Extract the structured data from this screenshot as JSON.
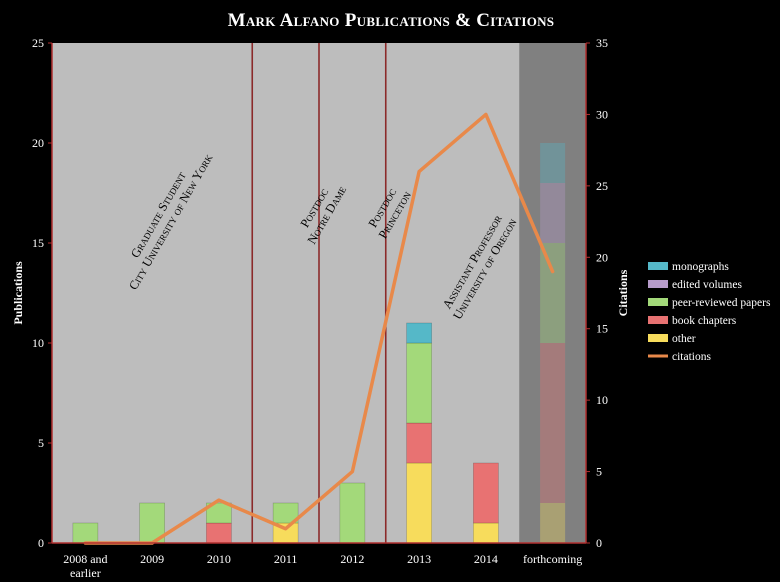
{
  "chart_data": {
    "type": "bar",
    "title": "Mark Alfano Publications & Citations",
    "ylabel": "Publications",
    "y2label": "Citations",
    "ylim": [
      0,
      25
    ],
    "y2lim": [
      0,
      35
    ],
    "yticks": [
      "0",
      "5",
      "10",
      "15",
      "20",
      "25"
    ],
    "y2ticks": [
      "0",
      "5",
      "10",
      "15",
      "20",
      "25",
      "30",
      "35"
    ],
    "categories": [
      "2008 and earlier",
      "2009",
      "2010",
      "2011",
      "2012",
      "2013",
      "2014",
      "forthcoming"
    ],
    "stacked": true,
    "series": [
      {
        "name": "other",
        "color": "#f7dc5c",
        "values": [
          0,
          0,
          0,
          1,
          0,
          4,
          1,
          2
        ]
      },
      {
        "name": "book chapters",
        "color": "#e87272",
        "values": [
          0,
          0,
          1,
          0,
          0,
          2,
          3,
          8
        ]
      },
      {
        "name": "peer-reviewed papers",
        "color": "#a3d97a",
        "values": [
          1,
          2,
          1,
          1,
          3,
          4,
          0,
          5
        ]
      },
      {
        "name": "edited volumes",
        "color": "#b79ccb",
        "values": [
          0,
          0,
          0,
          0,
          0,
          0,
          0,
          3
        ]
      },
      {
        "name": "monographs",
        "color": "#55b8c8",
        "values": [
          0,
          0,
          0,
          0,
          0,
          1,
          0,
          2
        ]
      }
    ],
    "line_series": {
      "name": "citations",
      "color": "#e8894a",
      "axis": "right",
      "values": [
        0,
        0,
        3,
        1,
        5,
        26,
        30,
        19
      ]
    },
    "legend_order": [
      "monographs",
      "edited volumes",
      "peer-reviewed papers",
      "book chapters",
      "other",
      "citations"
    ],
    "legend_position": "right",
    "faded_category": "forthcoming",
    "grid": false,
    "dividers_after": [
      "2010",
      "2011",
      "2012"
    ],
    "annotations": [
      {
        "lines": [
          "Graduate Student",
          "City University of New York"
        ]
      },
      {
        "lines": [
          "Postdoc",
          "Notre Dame"
        ]
      },
      {
        "lines": [
          "Postdoc",
          "Princeton"
        ]
      },
      {
        "lines": [
          "Assistant Professor",
          "University of Oregon"
        ]
      }
    ]
  }
}
